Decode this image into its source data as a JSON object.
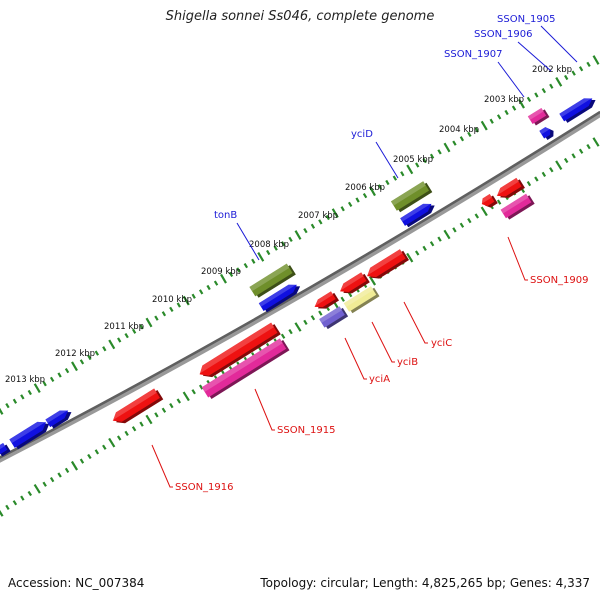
{
  "title": "Shigella sonnei Ss046, complete genome",
  "footer": {
    "accession": "Accession: NC_007384",
    "summary": "Topology: circular; Length: 4,825,265 bp; Genes: 4,337"
  },
  "colors": {
    "backbone": "#777777",
    "tick": "#2a8a2a",
    "forward_gene_label": "#1b1bd6",
    "reverse_gene_label": "#dd1111",
    "blue_feature": "#1010e0",
    "red_feature": "#ee1111",
    "olive_feature": "#6f8f2a",
    "pink_feature": "#e22a9a",
    "yellow_feature": "#f0ec96",
    "purple_feature": "#7060d0"
  },
  "kbp_labels": [
    "2002 kbp",
    "2003 kbp",
    "2004 kbp",
    "2005 kbp",
    "2006 kbp",
    "2007 kbp",
    "2008 kbp",
    "2009 kbp",
    "2010 kbp",
    "2011 kbp",
    "2012 kbp",
    "2013 kbp"
  ],
  "gene_labels": {
    "forward": [
      "SSON_1905",
      "SSON_1906",
      "SSON_1907",
      "yciD",
      "tonB"
    ],
    "reverse": [
      "SSON_1909",
      "yciC",
      "yciB",
      "yciA",
      "SSON_1915",
      "SSON_1916"
    ]
  }
}
